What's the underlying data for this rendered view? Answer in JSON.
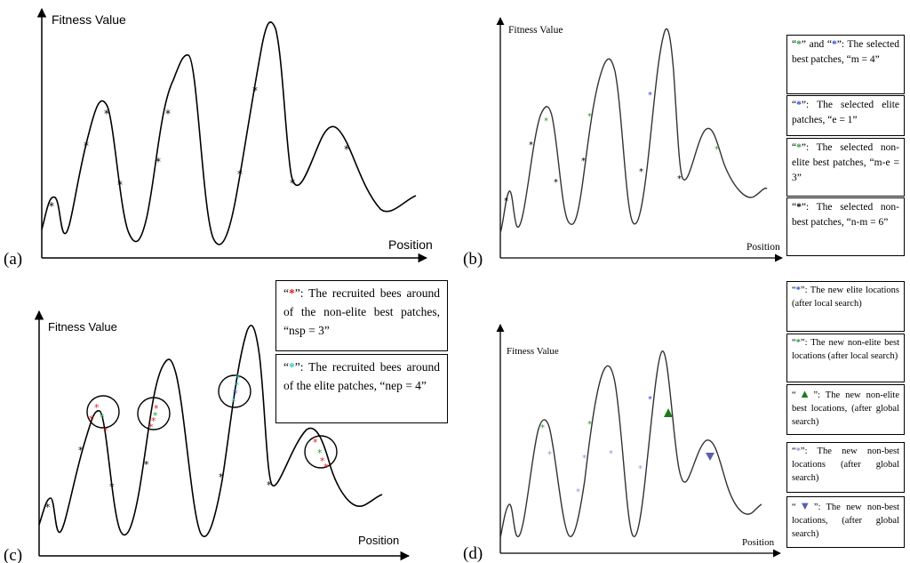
{
  "panels": {
    "a": {
      "label": "(a)",
      "ylabel": "Fitness Value",
      "xlabel": "Position",
      "markers": [
        {
          "c": "black",
          "n": 10
        }
      ]
    },
    "b": {
      "label": "(b)",
      "ylabel": "Fitness Value",
      "xlabel": "Position",
      "legend": [
        {
          "pre": "“",
          "mark": "*",
          "mark2": "*",
          "color": "#2e9b3b",
          "color2": "#2a4fd8",
          "text": "” and “",
          "text2": "”: The selected best patches, “m = 4”"
        },
        {
          "pre": "“",
          "mark": "*",
          "color": "#2a4fd8",
          "text": "”: The selected elite patches, “e = 1”"
        },
        {
          "pre": "“",
          "mark": "*",
          "color": "#2e9b3b",
          "text": "”: The selected non-elite best patches, “m-e = 3”"
        },
        {
          "pre": "“",
          "mark": "*",
          "color": "#000000",
          "text": "”: The selected non-best patches, “n-m = 6”"
        }
      ]
    },
    "c": {
      "label": "(c)",
      "ylabel": "Fitness Value",
      "xlabel": "Position",
      "legend": [
        {
          "pre": "“",
          "mark": "*",
          "color": "#e02020",
          "text": "”: The recruited bees around of the non-elite best patches, “nsp = 3”"
        },
        {
          "pre": "“",
          "mark": "*",
          "color": "#39c6c6",
          "text": "”: The recruited bees around of the elite patches, “nep = 4”"
        }
      ]
    },
    "d": {
      "label": "(d)",
      "ylabel": "Fitness Value",
      "xlabel": "Position",
      "legend": [
        {
          "pre": "“",
          "mark": "*",
          "color": "#2a4fd8",
          "text": "”: The new elite locations (after local search)"
        },
        {
          "pre": "“",
          "mark": "*",
          "color": "#2e9b3b",
          "text": "”: The new non-elite best locations (after local search)"
        },
        {
          "pre": "“",
          "mark": "▲",
          "color": "#1f7a1f",
          "text": "”: The new non-elite best locations, (after global search)"
        },
        {
          "pre": "“",
          "mark": "*",
          "color": "#9b8fd6",
          "text": "”: The new non-best locations (after global search)"
        },
        {
          "pre": "“",
          "mark": "▼",
          "color": "#5a5fa8",
          "text": "”: The new non-best locations, (after global search)"
        }
      ]
    }
  }
}
